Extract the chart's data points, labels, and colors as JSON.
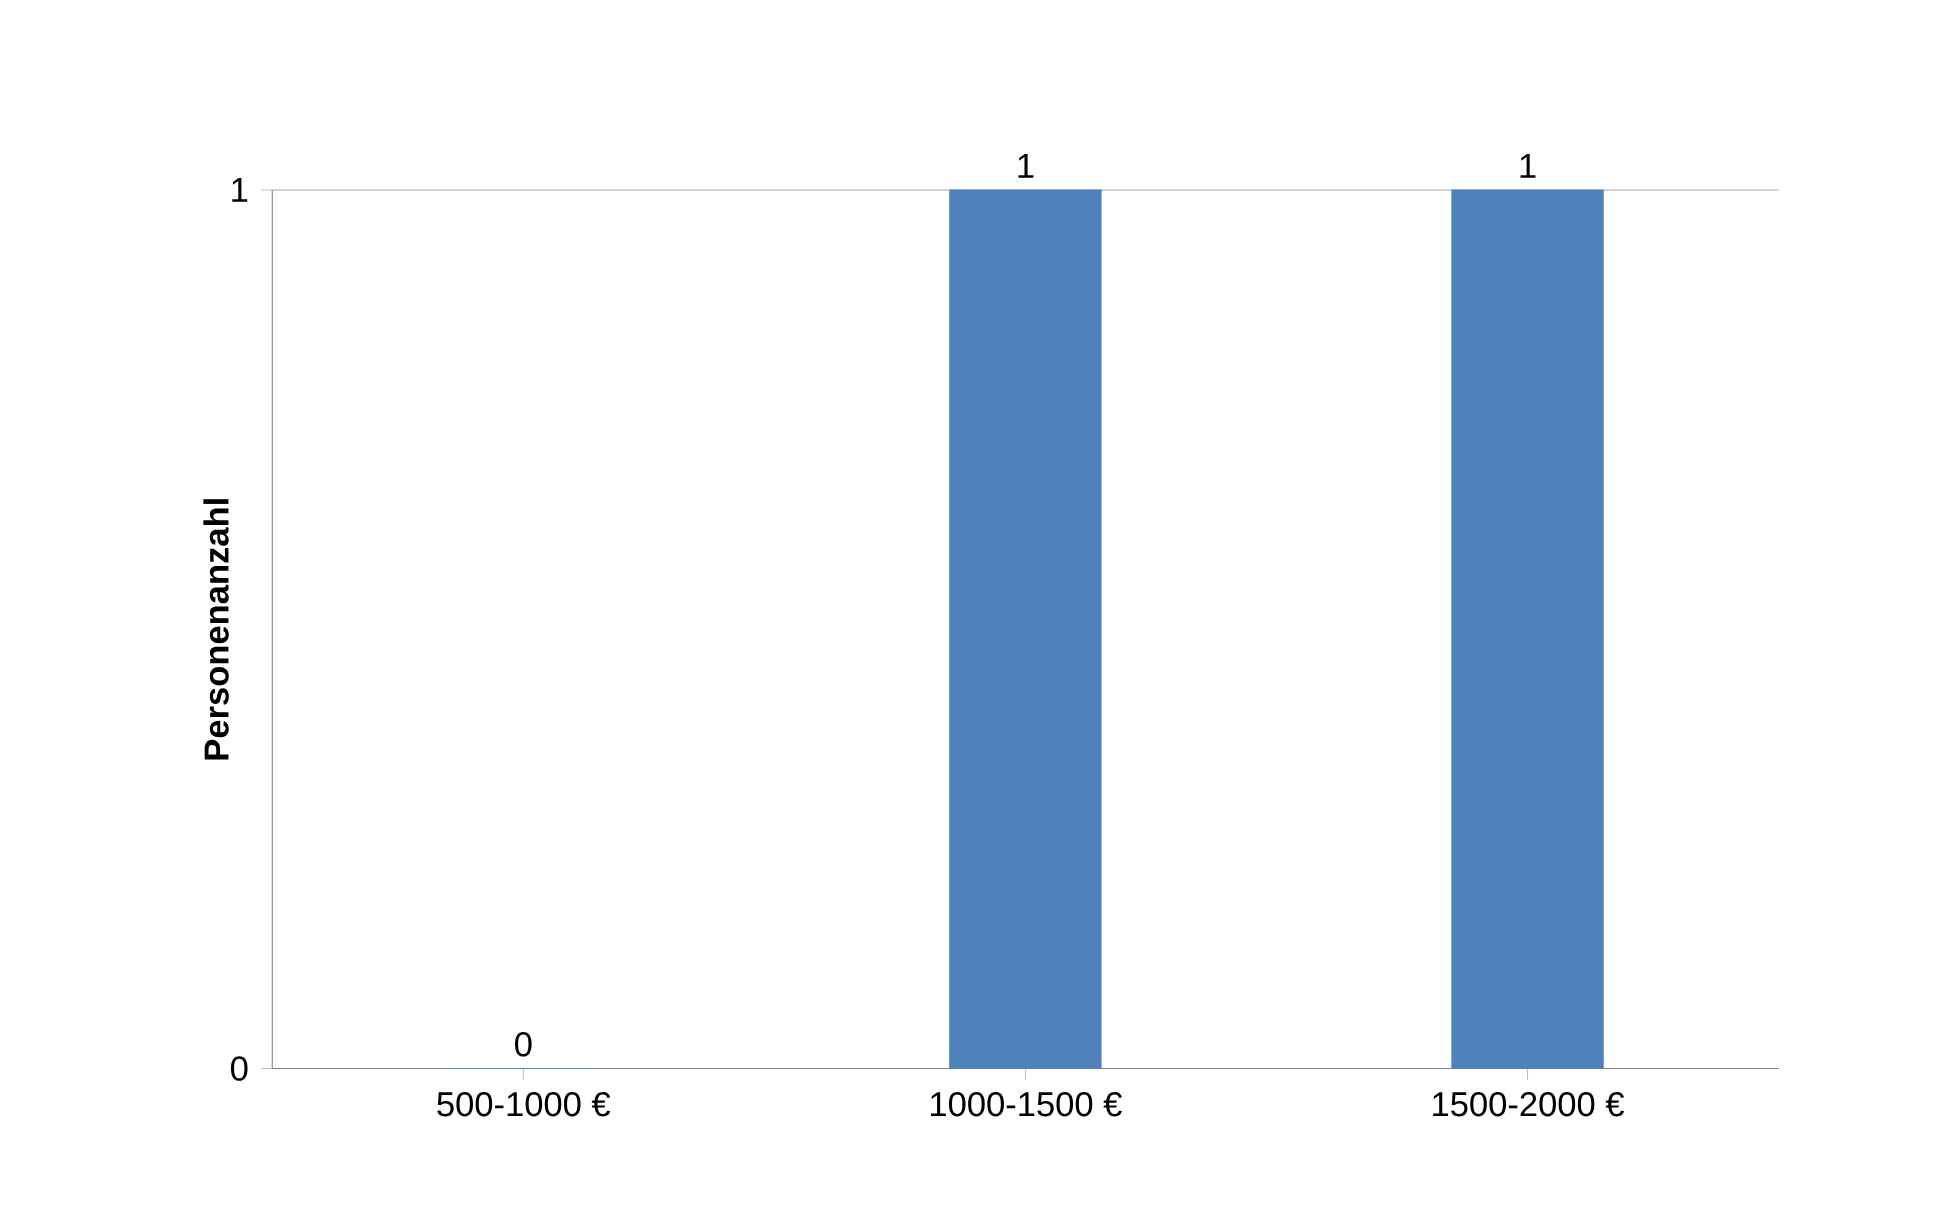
{
  "chart_data": {
    "type": "bar",
    "ylabel": "Personenanzahl",
    "categories": [
      "500-1000 €",
      "1000-1500 €",
      "1500-2000 €"
    ],
    "values": [
      0,
      1,
      1
    ],
    "color": "#4f81bd",
    "ylim": [
      0,
      1
    ],
    "yticks": [
      0,
      1
    ],
    "grid": "y",
    "data_labels": true
  }
}
